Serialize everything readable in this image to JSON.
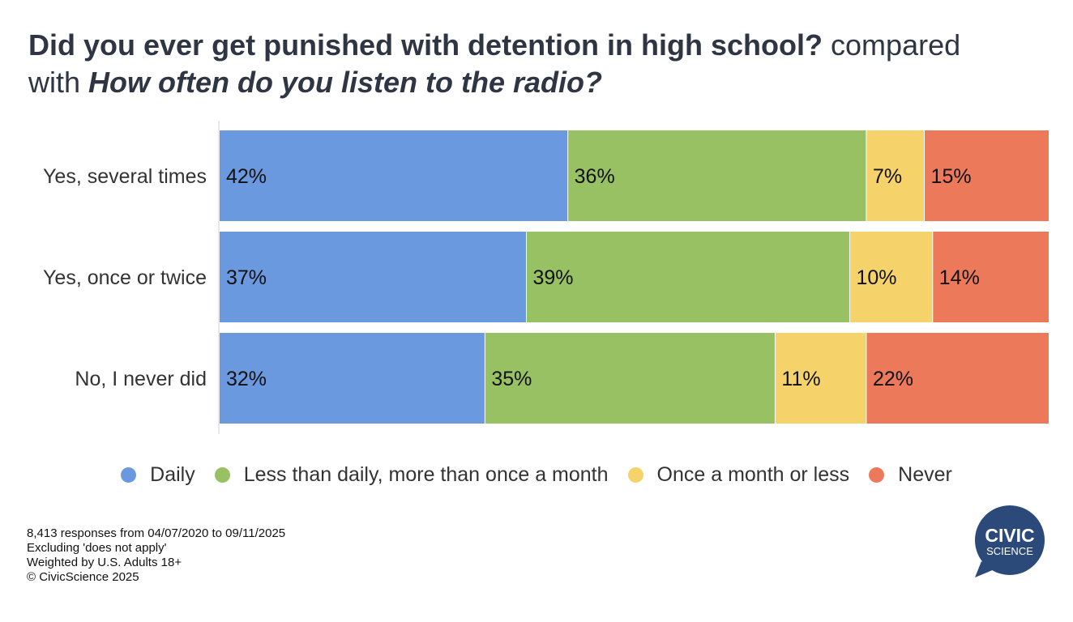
{
  "title": {
    "question1": "Did you ever get punished with detention in high school?",
    "connector1": "compared",
    "connector2": "with",
    "question2": "How often do you listen to the radio?"
  },
  "chart_data": {
    "type": "bar",
    "orientation": "horizontal",
    "stacked": true,
    "categories": [
      "Yes, several times",
      "Yes, once or twice",
      "No, I never did"
    ],
    "series": [
      {
        "name": "Daily",
        "color": "#6a99e0",
        "values": [
          42,
          37,
          32
        ]
      },
      {
        "name": "Less than daily, more than once a month",
        "color": "#98c163",
        "values": [
          36,
          39,
          35
        ]
      },
      {
        "name": "Once a month or less",
        "color": "#f5d26a",
        "values": [
          7,
          10,
          11
        ]
      },
      {
        "name": "Never",
        "color": "#ec7a5a",
        "values": [
          15,
          14,
          22
        ]
      }
    ],
    "data_labels": [
      [
        "42%",
        "36%",
        "7%",
        "15%"
      ],
      [
        "37%",
        "39%",
        "10%",
        "14%"
      ],
      [
        "32%",
        "35%",
        "11%",
        "22%"
      ]
    ],
    "xlim": [
      0,
      100
    ],
    "legend_position": "bottom",
    "grid": false
  },
  "footnotes": [
    "8,413 responses from 04/07/2020 to 09/11/2025",
    "Excluding 'does not apply'",
    "Weighted by U.S. Adults 18+",
    "© CivicScience 2025"
  ],
  "logo": {
    "line1": "CIVIC",
    "line2": "SCIENCE",
    "color": "#2b4a7a"
  }
}
